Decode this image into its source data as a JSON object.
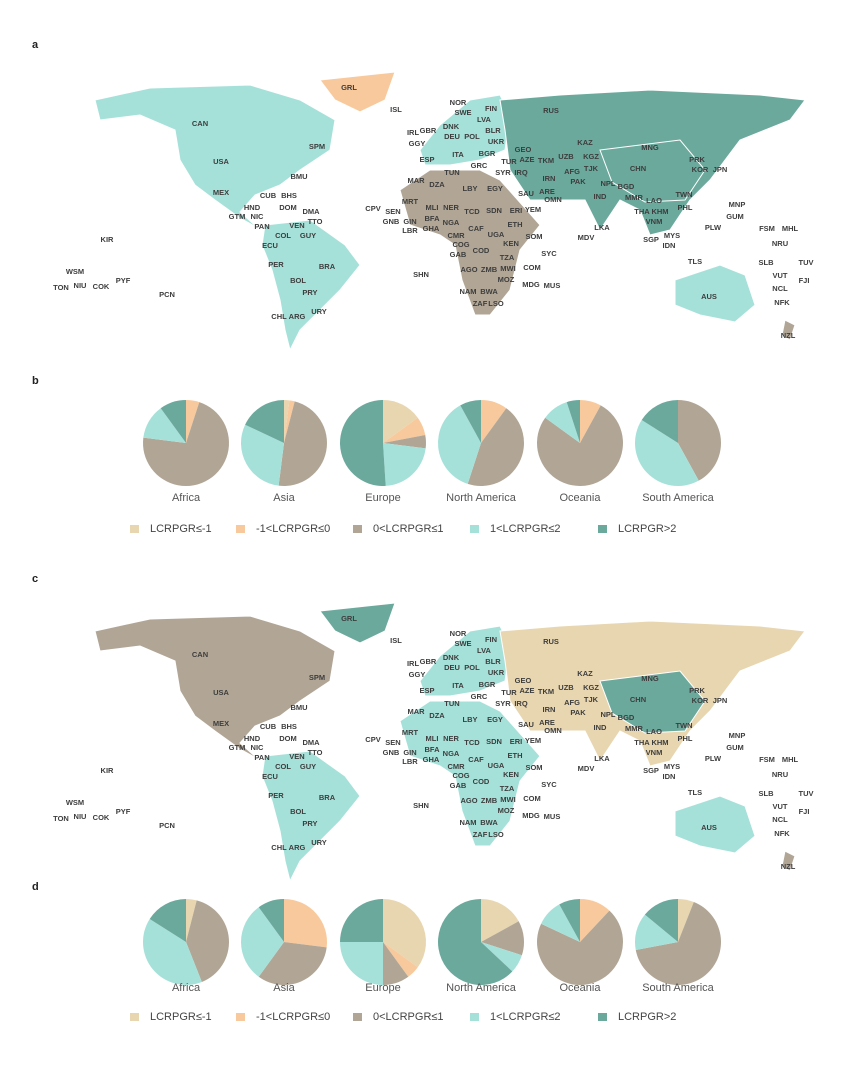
{
  "panel_labels": [
    "a",
    "b",
    "c",
    "d"
  ],
  "maps": [
    {
      "country_labels": [
        "GRL",
        "ISL",
        "NOR",
        "SWE",
        "FIN",
        "RUS",
        "CAN",
        "IRL",
        "GBR",
        "DNK",
        "LVA",
        "BLR",
        "GGY",
        "DEU",
        "POL",
        "UKR",
        "SPM",
        "KAZ",
        "MNG",
        "ITA",
        "BGR",
        "GEO",
        "UZB",
        "KGZ",
        "ESP",
        "GRC",
        "TUR",
        "AZE",
        "TKM",
        "TJK",
        "CHN",
        "USA",
        "PRK",
        "KOR",
        "JPN",
        "SYR",
        "IRQ",
        "AFG",
        "TUN",
        "BMU",
        "MAR",
        "DZA",
        "LBY",
        "EGY",
        "IRN",
        "PAK",
        "NPL",
        "BGD",
        "MEX",
        "CUB",
        "BHS",
        "DOM",
        "SAU",
        "ARE",
        "IND",
        "MMR",
        "TWN",
        "LAO",
        "THA",
        "KHM",
        "VNM",
        "PHL",
        "OMN",
        "MNP",
        "GUM",
        "HND",
        "DMA",
        "GTM",
        "NIC",
        "CPV",
        "SEN",
        "MRT",
        "MLI",
        "NER",
        "TCD",
        "SDN",
        "ERI",
        "YEM",
        "BFA",
        "GIN",
        "GNB",
        "GHA",
        "NGA",
        "CAF",
        "ETH",
        "LBR",
        "CMR",
        "UGA",
        "SOM",
        "KEN",
        "FSM",
        "MHL",
        "PLW",
        "PAN",
        "VEN",
        "TTO",
        "GUY",
        "COL",
        "LKA",
        "MDV",
        "SGP",
        "MYS",
        "IDN",
        "NRU",
        "KIR",
        "GAB",
        "COG",
        "COD",
        "ECU",
        "SYC",
        "TZA",
        "TLS",
        "SLB",
        "TUV",
        "WSM",
        "NIU",
        "TON",
        "COK",
        "PYF",
        "AGO",
        "ZMB",
        "MWI",
        "COM",
        "PER",
        "BRA",
        "VUT",
        "FJI",
        "BOL",
        "MOZ",
        "MDG",
        "MUS",
        "SHN",
        "NAM",
        "BWA",
        "NCL",
        "PCN",
        "PRY",
        "AUS",
        "ZAF",
        "LSO",
        "NFK",
        "CHL",
        "ARG",
        "URY",
        "NZL"
      ]
    },
    {
      "country_labels": [
        "GRL",
        "ISL",
        "NOR",
        "SWE",
        "FIN",
        "RUS",
        "CAN",
        "IRL",
        "GBR",
        "DNK",
        "LVA",
        "BLR",
        "GGY",
        "DEU",
        "POL",
        "UKR",
        "SPM",
        "KAZ",
        "MNG",
        "ITA",
        "BGR",
        "GEO",
        "UZB",
        "KGZ",
        "ESP",
        "GRC",
        "TUR",
        "AZE",
        "TKM",
        "TJK",
        "CHN",
        "USA",
        "PRK",
        "KOR",
        "JPN",
        "SYR",
        "IRQ",
        "AFG",
        "TUN",
        "BMU",
        "MAR",
        "DZA",
        "LBY",
        "EGY",
        "IRN",
        "PAK",
        "NPL",
        "BGD",
        "MEX",
        "CUB",
        "BHS",
        "DOM",
        "SAU",
        "ARE",
        "IND",
        "MMR",
        "TWN",
        "LAO",
        "THA",
        "KHM",
        "VNM",
        "PHL",
        "OMN",
        "MNP",
        "GUM",
        "HND",
        "DMA",
        "GTM",
        "NIC",
        "CPV",
        "SEN",
        "MRT",
        "MLI",
        "NER",
        "TCD",
        "SDN",
        "ERI",
        "YEM",
        "BFA",
        "GIN",
        "GNB",
        "GHA",
        "NGA",
        "CAF",
        "ETH",
        "LBR",
        "CMR",
        "UGA",
        "SOM",
        "KEN",
        "FSM",
        "MHL",
        "PLW",
        "PAN",
        "VEN",
        "TTO",
        "GUY",
        "COL",
        "LKA",
        "MDV",
        "SGP",
        "MYS",
        "IDN",
        "NRU",
        "KIR",
        "GAB",
        "COG",
        "COD",
        "ECU",
        "SYC",
        "TZA",
        "TLS",
        "SLB",
        "TUV",
        "WSM",
        "NIU",
        "TON",
        "COK",
        "PYF",
        "AGO",
        "ZMB",
        "MWI",
        "COM",
        "PER",
        "BRA",
        "VUT",
        "FJI",
        "BOL",
        "MOZ",
        "MDG",
        "MUS",
        "SHN",
        "NAM",
        "BWA",
        "NCL",
        "PCN",
        "PRY",
        "AUS",
        "ZAF",
        "LSO",
        "NFK",
        "CHL",
        "ARG",
        "URY",
        "NZL"
      ]
    }
  ],
  "chart_data": [
    {
      "type": "pie",
      "categories": [
        "LCRPGR≤-1",
        "-1<LCRPGR≤0",
        "0<LCRPGR≤1",
        "1<LCRPGR≤2",
        "LCRPGR>2"
      ],
      "colors": [
        "#e8d6b0",
        "#f8c99c",
        "#b1a696",
        "#a6e1d9",
        "#6ca99d"
      ],
      "series": [
        {
          "name": "Africa",
          "values": [
            0,
            5,
            72,
            13,
            10
          ]
        },
        {
          "name": "Asia",
          "values": [
            2,
            2,
            48,
            30,
            18
          ]
        },
        {
          "name": "Europe",
          "values": [
            15,
            7,
            5,
            22,
            51
          ]
        },
        {
          "name": "North America",
          "values": [
            0,
            10,
            45,
            37,
            8
          ]
        },
        {
          "name": "Oceania",
          "values": [
            0,
            8,
            77,
            10,
            5
          ]
        },
        {
          "name": "South America",
          "values": [
            0,
            0,
            42,
            42,
            16
          ]
        }
      ]
    },
    {
      "type": "pie",
      "categories": [
        "LCRPGR≤-1",
        "-1<LCRPGR≤0",
        "0<LCRPGR≤1",
        "1<LCRPGR≤2",
        "LCRPGR>2"
      ],
      "colors": [
        "#e8d6b0",
        "#f8c99c",
        "#b1a696",
        "#a6e1d9",
        "#6ca99d"
      ],
      "series": [
        {
          "name": "Africa",
          "values": [
            4,
            0,
            40,
            40,
            16
          ]
        },
        {
          "name": "Asia",
          "values": [
            0,
            27,
            33,
            30,
            10
          ]
        },
        {
          "name": "Europe",
          "values": [
            35,
            5,
            10,
            25,
            25
          ]
        },
        {
          "name": "North America",
          "values": [
            17,
            0,
            13,
            7,
            63
          ]
        },
        {
          "name": "Oceania",
          "values": [
            0,
            12,
            70,
            10,
            8
          ]
        },
        {
          "name": "South America",
          "values": [
            6,
            0,
            66,
            14,
            14
          ]
        }
      ]
    }
  ]
}
